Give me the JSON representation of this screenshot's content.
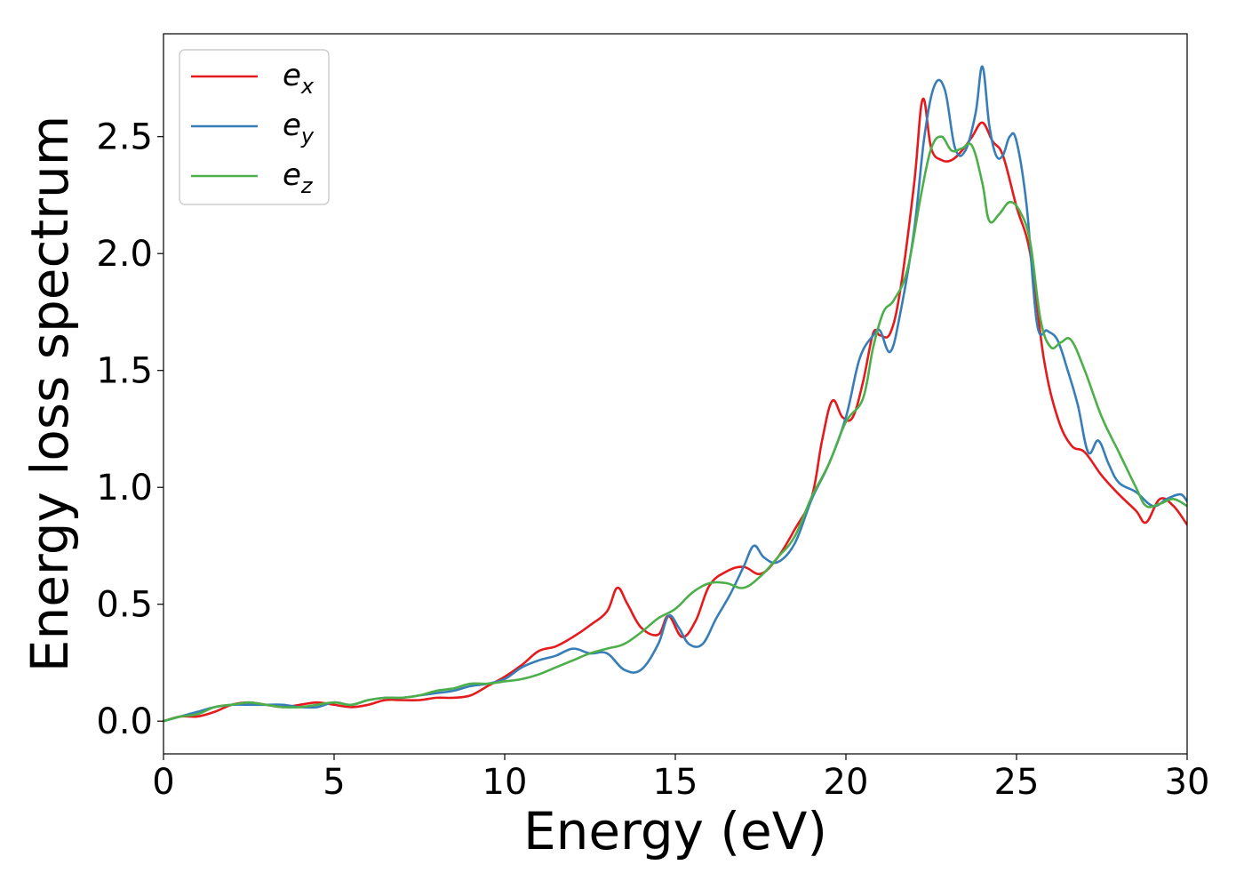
{
  "chart_data": {
    "type": "line",
    "xlabel": "Energy (eV)",
    "ylabel": "Energy loss spectrum",
    "xlim": [
      0,
      30
    ],
    "ylim": [
      -0.14,
      2.94
    ],
    "xticks": [
      0,
      5,
      10,
      15,
      20,
      25,
      30
    ],
    "xtick_labels": [
      "0",
      "5",
      "10",
      "15",
      "20",
      "25",
      "30"
    ],
    "yticks": [
      0.0,
      0.5,
      1.0,
      1.5,
      2.0,
      2.5
    ],
    "ytick_labels": [
      "0.0",
      "0.5",
      "1.0",
      "1.5",
      "2.0",
      "2.5"
    ],
    "grid": false,
    "legend_position": "top-left",
    "series": [
      {
        "name": "e",
        "sub": "x",
        "color": "#e41a1c",
        "x": [
          0,
          0.5,
          1,
          1.5,
          2,
          2.5,
          3,
          3.5,
          4,
          4.5,
          5,
          5.5,
          6,
          6.5,
          7,
          7.5,
          8,
          8.5,
          9,
          9.5,
          10,
          10.5,
          11,
          11.5,
          12,
          12.5,
          13,
          13.3,
          13.6,
          14,
          14.5,
          14.8,
          15.2,
          15.6,
          16,
          16.5,
          17,
          17.5,
          18,
          18.5,
          19,
          19.3,
          19.6,
          19.9,
          20.2,
          20.5,
          20.8,
          21,
          21.3,
          21.6,
          22,
          22.25,
          22.5,
          22.8,
          23.1,
          23.4,
          23.7,
          24,
          24.3,
          24.6,
          25,
          25.4,
          25.8,
          26.2,
          26.6,
          27,
          27.5,
          28,
          28.5,
          28.8,
          29.2,
          29.6,
          30
        ],
        "y": [
          0.0,
          0.02,
          0.02,
          0.04,
          0.07,
          0.08,
          0.07,
          0.06,
          0.07,
          0.08,
          0.07,
          0.06,
          0.07,
          0.09,
          0.09,
          0.09,
          0.1,
          0.1,
          0.11,
          0.15,
          0.19,
          0.24,
          0.3,
          0.32,
          0.36,
          0.41,
          0.47,
          0.57,
          0.5,
          0.4,
          0.37,
          0.45,
          0.36,
          0.43,
          0.58,
          0.64,
          0.66,
          0.63,
          0.7,
          0.82,
          0.96,
          1.2,
          1.37,
          1.3,
          1.3,
          1.45,
          1.66,
          1.65,
          1.66,
          1.85,
          2.3,
          2.66,
          2.45,
          2.4,
          2.4,
          2.44,
          2.5,
          2.56,
          2.48,
          2.42,
          2.2,
          2.0,
          1.55,
          1.3,
          1.18,
          1.15,
          1.05,
          0.97,
          0.9,
          0.85,
          0.95,
          0.92,
          0.84
        ]
      },
      {
        "name": "e",
        "sub": "y",
        "color": "#377eb8",
        "x": [
          0,
          0.5,
          1,
          1.5,
          2,
          2.5,
          3,
          3.5,
          4,
          4.5,
          5,
          5.5,
          6,
          6.5,
          7,
          7.5,
          8,
          8.5,
          9,
          9.5,
          10,
          10.5,
          11,
          11.5,
          12,
          12.5,
          13,
          13.5,
          14,
          14.5,
          14.8,
          15.1,
          15.4,
          15.8,
          16.2,
          16.6,
          17,
          17.3,
          17.6,
          18,
          18.5,
          19,
          19.5,
          20,
          20.4,
          20.8,
          21,
          21.3,
          21.6,
          22,
          22.3,
          22.6,
          22.9,
          23.2,
          23.5,
          23.8,
          24,
          24.2,
          24.4,
          24.6,
          24.8,
          25,
          25.3,
          25.6,
          25.9,
          26.2,
          26.5,
          26.8,
          27.1,
          27.4,
          27.7,
          28,
          28.5,
          29,
          29.4,
          29.8,
          30
        ],
        "y": [
          0.0,
          0.02,
          0.04,
          0.06,
          0.07,
          0.07,
          0.07,
          0.07,
          0.06,
          0.06,
          0.08,
          0.07,
          0.09,
          0.1,
          0.1,
          0.11,
          0.12,
          0.13,
          0.15,
          0.16,
          0.18,
          0.23,
          0.26,
          0.28,
          0.31,
          0.29,
          0.29,
          0.22,
          0.22,
          0.33,
          0.45,
          0.4,
          0.33,
          0.33,
          0.44,
          0.54,
          0.66,
          0.75,
          0.7,
          0.68,
          0.76,
          0.95,
          1.1,
          1.3,
          1.55,
          1.65,
          1.67,
          1.58,
          1.75,
          2.1,
          2.5,
          2.72,
          2.7,
          2.45,
          2.44,
          2.6,
          2.8,
          2.55,
          2.42,
          2.42,
          2.5,
          2.48,
          2.2,
          1.7,
          1.67,
          1.63,
          1.5,
          1.35,
          1.15,
          1.2,
          1.1,
          1.02,
          0.98,
          0.92,
          0.95,
          0.97,
          0.94
        ]
      },
      {
        "name": "e",
        "sub": "z",
        "color": "#4daf4a",
        "x": [
          0,
          0.5,
          1,
          1.5,
          2,
          2.5,
          3,
          3.5,
          4,
          4.5,
          5,
          5.5,
          6,
          6.5,
          7,
          7.5,
          8,
          8.5,
          9,
          9.5,
          10,
          10.5,
          11,
          11.5,
          12,
          12.5,
          13,
          13.5,
          14,
          14.5,
          15,
          15.5,
          16,
          16.5,
          17,
          17.5,
          18,
          18.5,
          19,
          19.5,
          20,
          20.5,
          20.8,
          21.1,
          21.4,
          21.8,
          22.2,
          22.5,
          22.8,
          23.1,
          23.4,
          23.7,
          24,
          24.2,
          24.5,
          24.8,
          25.1,
          25.4,
          25.7,
          26,
          26.3,
          26.6,
          27,
          27.5,
          28,
          28.5,
          28.8,
          29.2,
          29.6,
          30
        ],
        "y": [
          0.0,
          0.02,
          0.03,
          0.06,
          0.07,
          0.08,
          0.07,
          0.06,
          0.06,
          0.07,
          0.08,
          0.07,
          0.09,
          0.1,
          0.1,
          0.11,
          0.13,
          0.14,
          0.16,
          0.16,
          0.17,
          0.18,
          0.2,
          0.23,
          0.26,
          0.29,
          0.31,
          0.33,
          0.38,
          0.44,
          0.48,
          0.55,
          0.59,
          0.59,
          0.57,
          0.62,
          0.7,
          0.79,
          0.96,
          1.1,
          1.28,
          1.38,
          1.6,
          1.75,
          1.8,
          1.93,
          2.25,
          2.45,
          2.5,
          2.44,
          2.45,
          2.46,
          2.3,
          2.14,
          2.17,
          2.22,
          2.18,
          2.05,
          1.72,
          1.6,
          1.62,
          1.63,
          1.5,
          1.3,
          1.15,
          1.0,
          0.92,
          0.93,
          0.95,
          0.92
        ]
      }
    ]
  }
}
